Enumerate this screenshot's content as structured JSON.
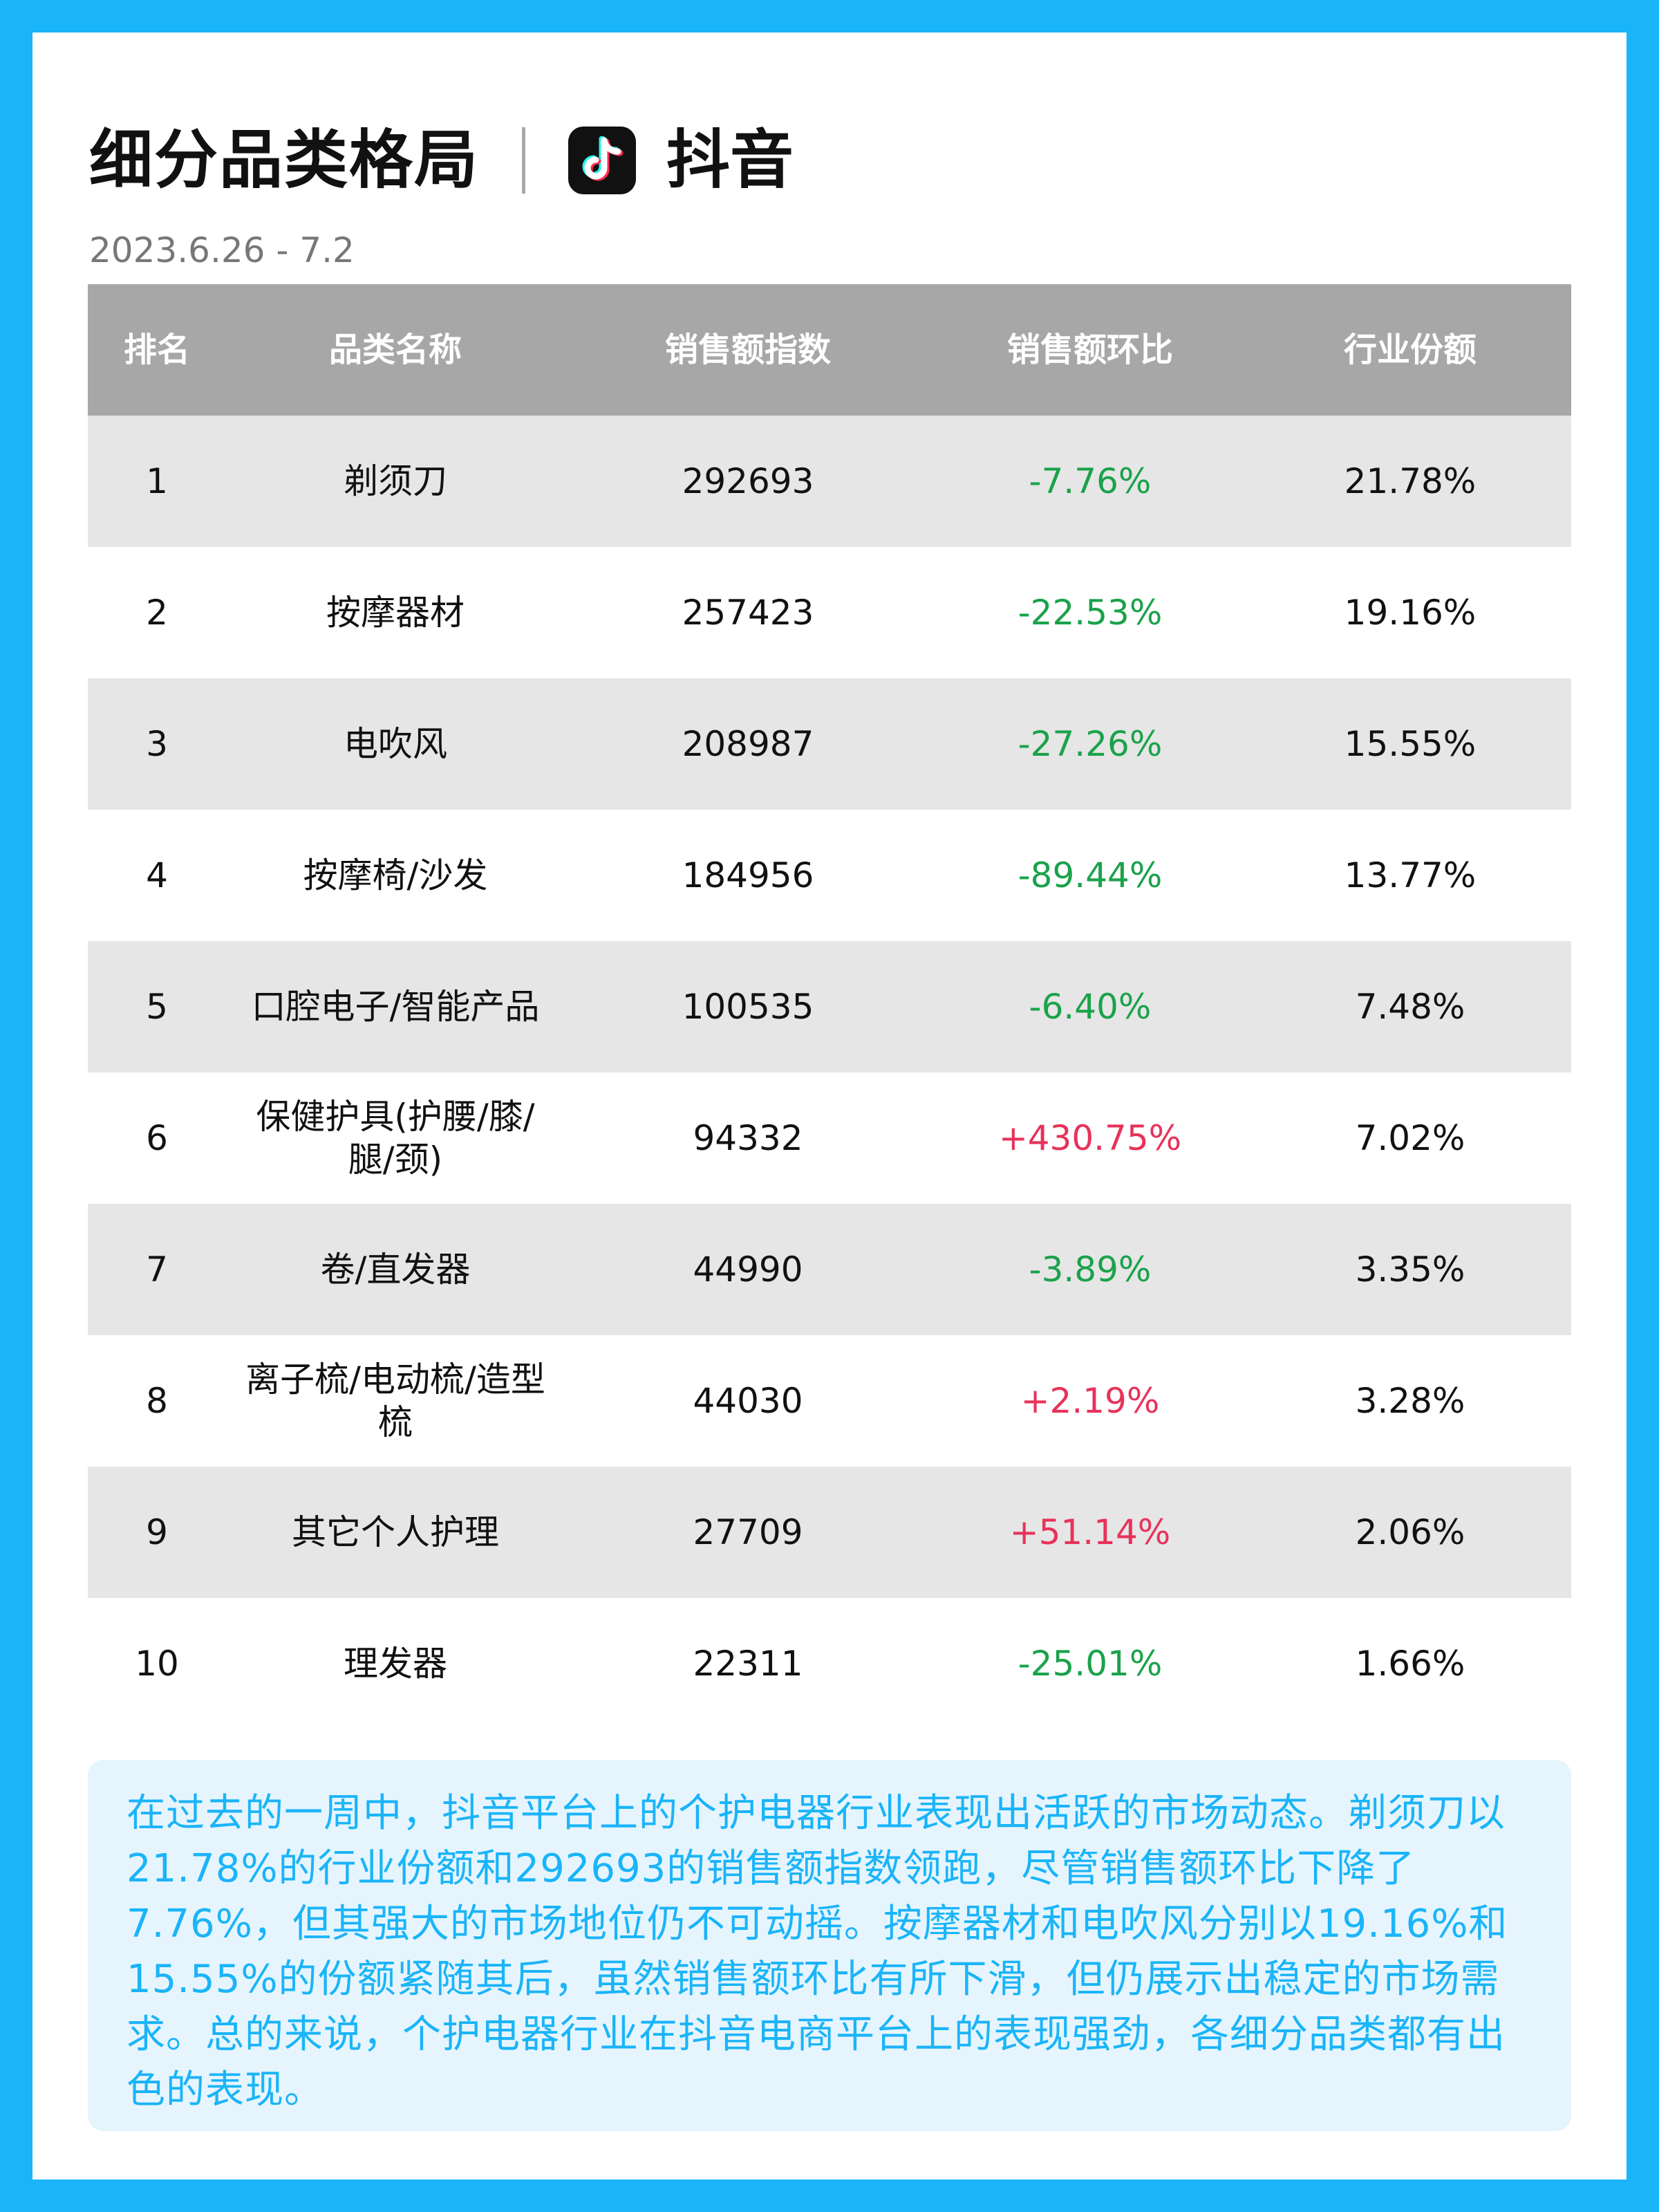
{
  "header": {
    "title": "细分品类格局",
    "platform": "抖音",
    "date_range": "2023.6.26 - 7.2"
  },
  "table": {
    "columns": [
      "排名",
      "品类名称",
      "销售额指数",
      "销售额环比",
      "行业份额"
    ],
    "rows": [
      {
        "rank": "1",
        "category": "剃须刀",
        "sales_index": "292693",
        "mom": "-7.76%",
        "share": "21.78%"
      },
      {
        "rank": "2",
        "category": "按摩器材",
        "sales_index": "257423",
        "mom": "-22.53%",
        "share": "19.16%"
      },
      {
        "rank": "3",
        "category": "电吹风",
        "sales_index": "208987",
        "mom": "-27.26%",
        "share": "15.55%"
      },
      {
        "rank": "4",
        "category": "按摩椅/沙发",
        "sales_index": "184956",
        "mom": "-89.44%",
        "share": "13.77%"
      },
      {
        "rank": "5",
        "category": "口腔电子/智能产品",
        "sales_index": "100535",
        "mom": "-6.40%",
        "share": "7.48%"
      },
      {
        "rank": "6",
        "category": "保健护具(护腰/膝/腿/颈)",
        "sales_index": "94332",
        "mom": "+430.75%",
        "share": "7.02%"
      },
      {
        "rank": "7",
        "category": "卷/直发器",
        "sales_index": "44990",
        "mom": "-3.89%",
        "share": "3.35%"
      },
      {
        "rank": "8",
        "category": "离子梳/电动梳/造型梳",
        "sales_index": "44030",
        "mom": "+2.19%",
        "share": "3.28%"
      },
      {
        "rank": "9",
        "category": "其它个人护理",
        "sales_index": "27709",
        "mom": "+51.14%",
        "share": "2.06%"
      },
      {
        "rank": "10",
        "category": "理发器",
        "sales_index": "22311",
        "mom": "-25.01%",
        "share": "1.66%"
      }
    ]
  },
  "summary": {
    "text": "在过去的一周中，抖音平台上的个护电器行业表现出活跃的市场动态。剃须刀以21.78%的行业份额和292693的销售额指数领跑，尽管销售额环比下降了7.76%，但其强大的市场地位仍不可动摇。按摩器材和电吹风分别以19.16%和15.55%的份额紧随其后，虽然销售额环比有所下滑，但仍展示出稳定的市场需求。总的来说，个护电器行业在抖音电商平台上的表现强劲，各细分品类都有出色的表现。"
  },
  "colors": {
    "frame": "#1ab4f9",
    "header_row": "#a7a7a7",
    "shaded_row": "#e6e6e6",
    "negative": "#1aa24b",
    "positive": "#e8325a",
    "summary_bg": "#e6f5fd",
    "summary_text": "#1ab4f9"
  },
  "icons": {
    "platform_logo": "douyin-icon"
  }
}
